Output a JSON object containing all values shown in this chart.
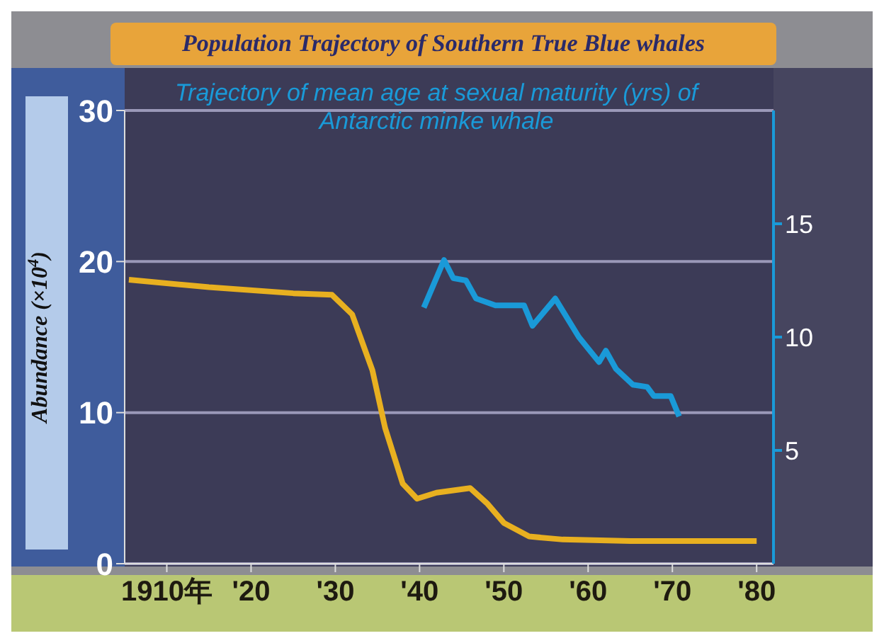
{
  "chart_data": {
    "type": "line",
    "title": "Population Trajectory of Southern True Blue whales",
    "ylabel": "Abundance (×10$^{4}$)",
    "xlim": [
      1905,
      1982
    ],
    "xticks": [
      {
        "value": 1910,
        "label": "1910年"
      },
      {
        "value": 1920,
        "label": "'20"
      },
      {
        "value": 1930,
        "label": "'30"
      },
      {
        "value": 1940,
        "label": "'40"
      },
      {
        "value": 1950,
        "label": "'50"
      },
      {
        "value": 1960,
        "label": "'60"
      },
      {
        "value": 1970,
        "label": "'70"
      },
      {
        "value": 1980,
        "label": "'80"
      }
    ],
    "ylim": [
      0,
      30
    ],
    "yticks": [
      0,
      10,
      20,
      30
    ],
    "y2lim": [
      0,
      20
    ],
    "y2ticks": [
      5,
      10,
      15
    ],
    "grid": "y",
    "marker": "none",
    "line_style": "solid",
    "series": [
      {
        "color": "#e8b020",
        "x": [
          1905.5,
          1915,
          1925,
          1929.6,
          1932,
          1934.4,
          1935.9,
          1938,
          1939.7,
          1942,
          1946,
          1948,
          1950,
          1953,
          1957,
          1965,
          1980
        ],
        "values": [
          18.8,
          18.3,
          17.9,
          17.8,
          16.5,
          12.8,
          9,
          5.3,
          4.3,
          4.7,
          5,
          4,
          2.7,
          1.8,
          1.6,
          1.5,
          1.5
        ]
      },
      {
        "name": "Trajectory of mean age at sexual maturity (yrs) of Antarctic minke whale",
        "color": "#1a9ad8",
        "axis": "y2",
        "x": [
          1940.5,
          1942.9,
          1944,
          1945.5,
          1946.7,
          1949,
          1952.4,
          1953.4,
          1956.1,
          1958.9,
          1961.3,
          1962.1,
          1963.3,
          1965.3,
          1967,
          1967.8,
          1969.8,
          1970.8
        ],
        "values": [
          11.3,
          13.4,
          12.6,
          12.5,
          11.7,
          11.4,
          11.4,
          10.5,
          11.7,
          10,
          8.9,
          9.4,
          8.6,
          7.9,
          7.8,
          7.4,
          7.4,
          6.5
        ]
      }
    ]
  }
}
